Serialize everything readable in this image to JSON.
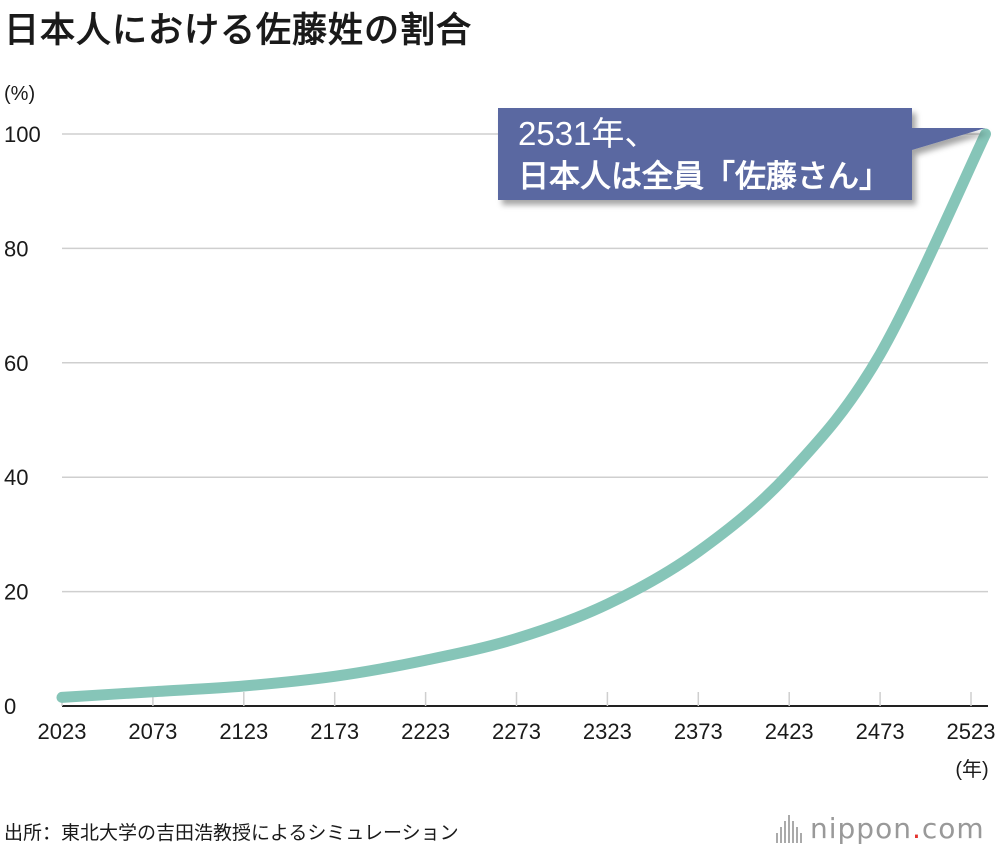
{
  "title": "日本人における佐藤姓の割合",
  "source": "出所：東北大学の吉田浩教授によるシミュレーション",
  "logo": {
    "part1": "nippon",
    "dot": ".",
    "part2": "com"
  },
  "colors": {
    "line": "#86c5b8",
    "callout": "#5a68a1",
    "grid": "#cfcfcf",
    "axis": "#222222",
    "logo_dot": "#e4342f"
  },
  "chart_data": {
    "type": "line",
    "title": "日本人における佐藤姓の割合",
    "ylabel": "(%)",
    "xlabel": "(年)",
    "ylim": [
      0,
      100
    ],
    "xlim": [
      2023,
      2531
    ],
    "y_ticks": [
      0,
      20,
      40,
      60,
      80,
      100
    ],
    "x_ticks": [
      2023,
      2073,
      2123,
      2173,
      2223,
      2273,
      2323,
      2373,
      2423,
      2473,
      2523
    ],
    "grid": true,
    "series": [
      {
        "x": [
          2023,
          2073,
          2123,
          2173,
          2223,
          2273,
          2323,
          2373,
          2423,
          2473,
          2531
        ],
        "y": [
          1.5,
          2.5,
          3.5,
          5.2,
          8.0,
          11.8,
          17.8,
          27.0,
          40.7,
          61.5,
          100.0
        ]
      }
    ],
    "annotation": {
      "line1": "2531年、",
      "line2": "日本人は全員「佐藤さん」",
      "x": 2531,
      "y": 100
    }
  }
}
